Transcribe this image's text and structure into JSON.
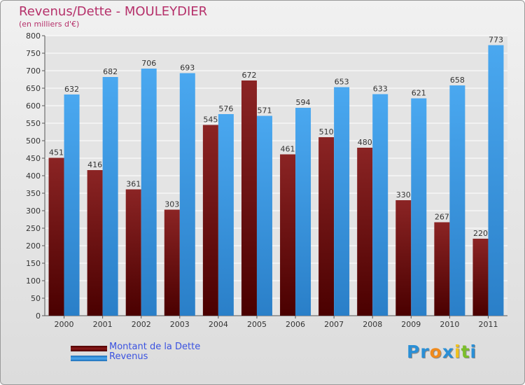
{
  "chart_data": {
    "type": "bar",
    "title": "Revenus/Dette - MOULEYDIER",
    "subtitle": "(en milliers d'€)",
    "categories": [
      "2000",
      "2001",
      "2002",
      "2003",
      "2004",
      "2005",
      "2006",
      "2007",
      "2008",
      "2009",
      "2010",
      "2011"
    ],
    "series": [
      {
        "name": "Montant de la Dette",
        "color": "#8b1a1a",
        "values": [
          451,
          416,
          361,
          303,
          545,
          672,
          461,
          510,
          480,
          330,
          267,
          220
        ]
      },
      {
        "name": "Revenus",
        "color": "#3a9ae8",
        "values": [
          632,
          682,
          706,
          693,
          576,
          571,
          594,
          653,
          633,
          621,
          658,
          773
        ]
      }
    ],
    "ylim": [
      0,
      800
    ],
    "yticks": [
      0,
      50,
      100,
      150,
      200,
      250,
      300,
      350,
      400,
      450,
      500,
      550,
      600,
      650,
      700,
      750,
      800
    ],
    "grid": true,
    "legend": "bottom-left"
  },
  "branding": {
    "logo_letters": [
      {
        "char": "P",
        "color": "#2a8fd6"
      },
      {
        "char": "r",
        "color": "#2a8fd6"
      },
      {
        "char": "o",
        "color": "#f08a1c"
      },
      {
        "char": "x",
        "color": "#2a8fd6"
      },
      {
        "char": "i",
        "color": "#f0c21c"
      },
      {
        "char": "t",
        "color": "#7bbf2a"
      },
      {
        "char": "i",
        "color": "#2a8fd6"
      }
    ]
  }
}
